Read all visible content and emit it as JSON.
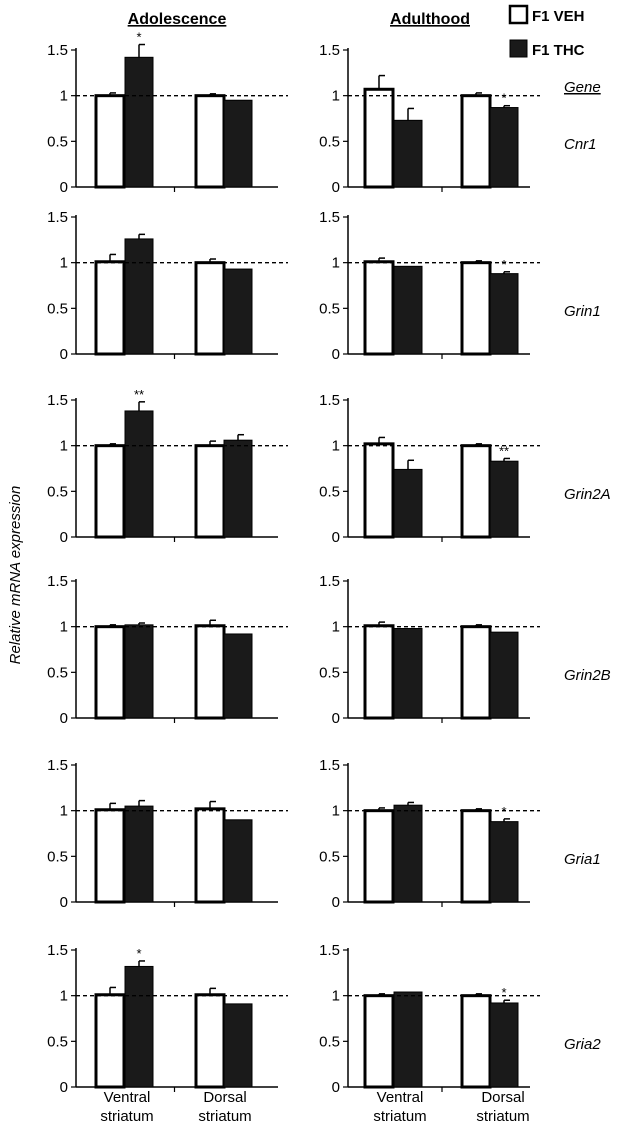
{
  "headers": {
    "left": "Adolescence",
    "right": "Adulthood"
  },
  "gene_header": "Gene",
  "y_axis_label": "Relative mRNA expression",
  "legend": [
    {
      "label": "F1 VEH",
      "color": "#ffffff"
    },
    {
      "label": "F1 THC",
      "color": "#1a1a1a"
    }
  ],
  "categories": [
    "Ventral\nstriatum",
    "Dorsal\nstriatum"
  ],
  "chart_data": [
    {
      "type": "bar",
      "period": "Adolescence",
      "gene": "Cnr1",
      "categories": [
        "Ventral striatum",
        "Dorsal striatum"
      ],
      "ylim": [
        0,
        1.5
      ],
      "yticks": [
        "0",
        "0.5",
        "1",
        "1.5"
      ],
      "reference_line": 1,
      "series": [
        {
          "name": "F1 VEH",
          "values": [
            1.0,
            1.0
          ],
          "errors": [
            0.03,
            0.02
          ]
        },
        {
          "name": "F1 THC",
          "values": [
            1.42,
            0.95
          ],
          "errors": [
            0.14,
            0.0
          ]
        }
      ],
      "significance": [
        {
          "category": "Ventral striatum",
          "label": "*"
        }
      ]
    },
    {
      "type": "bar",
      "period": "Adulthood",
      "gene": "Cnr1",
      "categories": [
        "Ventral striatum",
        "Dorsal striatum"
      ],
      "ylim": [
        0,
        1.5
      ],
      "yticks": [
        "0",
        "0.5",
        "1",
        "1.5"
      ],
      "reference_line": 1,
      "series": [
        {
          "name": "F1 VEH",
          "values": [
            1.07,
            1.0
          ],
          "errors": [
            0.15,
            0.03
          ]
        },
        {
          "name": "F1 THC",
          "values": [
            0.73,
            0.87
          ],
          "errors": [
            0.13,
            0.02
          ]
        }
      ],
      "significance": [
        {
          "category": "Dorsal striatum",
          "label": "*"
        }
      ]
    },
    {
      "type": "bar",
      "period": "Adolescence",
      "gene": "Grin1",
      "categories": [
        "Ventral striatum",
        "Dorsal striatum"
      ],
      "ylim": [
        0,
        1.5
      ],
      "yticks": [
        "0",
        "0.5",
        "1",
        "1.5"
      ],
      "reference_line": 1,
      "series": [
        {
          "name": "F1 VEH",
          "values": [
            1.01,
            1.0
          ],
          "errors": [
            0.08,
            0.04
          ]
        },
        {
          "name": "F1 THC",
          "values": [
            1.26,
            0.93
          ],
          "errors": [
            0.05,
            0.0
          ]
        }
      ],
      "significance": []
    },
    {
      "type": "bar",
      "period": "Adulthood",
      "gene": "Grin1",
      "categories": [
        "Ventral striatum",
        "Dorsal striatum"
      ],
      "ylim": [
        0,
        1.5
      ],
      "yticks": [
        "0",
        "0.5",
        "1",
        "1.5"
      ],
      "reference_line": 1,
      "series": [
        {
          "name": "F1 VEH",
          "values": [
            1.01,
            1.0
          ],
          "errors": [
            0.04,
            0.02
          ]
        },
        {
          "name": "F1 THC",
          "values": [
            0.96,
            0.88
          ],
          "errors": [
            0.0,
            0.02
          ]
        }
      ],
      "significance": [
        {
          "category": "Dorsal striatum",
          "label": "*"
        }
      ]
    },
    {
      "type": "bar",
      "period": "Adolescence",
      "gene": "Grin2A",
      "categories": [
        "Ventral striatum",
        "Dorsal striatum"
      ],
      "ylim": [
        0,
        1.5
      ],
      "yticks": [
        "0",
        "0.5",
        "1",
        "1.5"
      ],
      "reference_line": 1,
      "series": [
        {
          "name": "F1 VEH",
          "values": [
            1.0,
            1.0
          ],
          "errors": [
            0.02,
            0.05
          ]
        },
        {
          "name": "F1 THC",
          "values": [
            1.38,
            1.06
          ],
          "errors": [
            0.1,
            0.06
          ]
        }
      ],
      "significance": [
        {
          "category": "Ventral striatum",
          "label": "**"
        }
      ]
    },
    {
      "type": "bar",
      "period": "Adulthood",
      "gene": "Grin2A",
      "categories": [
        "Ventral striatum",
        "Dorsal striatum"
      ],
      "ylim": [
        0,
        1.5
      ],
      "yticks": [
        "0",
        "0.5",
        "1",
        "1.5"
      ],
      "reference_line": 1,
      "series": [
        {
          "name": "F1 VEH",
          "values": [
            1.02,
            1.0
          ],
          "errors": [
            0.07,
            0.02
          ]
        },
        {
          "name": "F1 THC",
          "values": [
            0.74,
            0.83
          ],
          "errors": [
            0.1,
            0.03
          ]
        }
      ],
      "significance": [
        {
          "category": "Dorsal striatum",
          "label": "**"
        }
      ]
    },
    {
      "type": "bar",
      "period": "Adolescence",
      "gene": "Grin2B",
      "categories": [
        "Ventral striatum",
        "Dorsal striatum"
      ],
      "ylim": [
        0,
        1.5
      ],
      "yticks": [
        "0",
        "0.5",
        "1",
        "1.5"
      ],
      "reference_line": 1,
      "series": [
        {
          "name": "F1 VEH",
          "values": [
            1.0,
            1.01
          ],
          "errors": [
            0.02,
            0.06
          ]
        },
        {
          "name": "F1 THC",
          "values": [
            1.02,
            0.92
          ],
          "errors": [
            0.02,
            0.0
          ]
        }
      ],
      "significance": []
    },
    {
      "type": "bar",
      "period": "Adulthood",
      "gene": "Grin2B",
      "categories": [
        "Ventral striatum",
        "Dorsal striatum"
      ],
      "ylim": [
        0,
        1.5
      ],
      "yticks": [
        "0",
        "0.5",
        "1",
        "1.5"
      ],
      "reference_line": 1,
      "series": [
        {
          "name": "F1 VEH",
          "values": [
            1.01,
            1.0
          ],
          "errors": [
            0.04,
            0.02
          ]
        },
        {
          "name": "F1 THC",
          "values": [
            0.98,
            0.94
          ],
          "errors": [
            0.0,
            0.0
          ]
        }
      ],
      "significance": []
    },
    {
      "type": "bar",
      "period": "Adolescence",
      "gene": "Gria1",
      "categories": [
        "Ventral striatum",
        "Dorsal striatum"
      ],
      "ylim": [
        0,
        1.5
      ],
      "yticks": [
        "0",
        "0.5",
        "1",
        "1.5"
      ],
      "reference_line": 1,
      "series": [
        {
          "name": "F1 VEH",
          "values": [
            1.01,
            1.02
          ],
          "errors": [
            0.07,
            0.08
          ]
        },
        {
          "name": "F1 THC",
          "values": [
            1.05,
            0.9
          ],
          "errors": [
            0.06,
            0.0
          ]
        }
      ],
      "significance": []
    },
    {
      "type": "bar",
      "period": "Adulthood",
      "gene": "Gria1",
      "categories": [
        "Ventral striatum",
        "Dorsal striatum"
      ],
      "ylim": [
        0,
        1.5
      ],
      "yticks": [
        "0",
        "0.5",
        "1",
        "1.5"
      ],
      "reference_line": 1,
      "series": [
        {
          "name": "F1 VEH",
          "values": [
            1.0,
            1.0
          ],
          "errors": [
            0.03,
            0.02
          ]
        },
        {
          "name": "F1 THC",
          "values": [
            1.06,
            0.88
          ],
          "errors": [
            0.03,
            0.03
          ]
        }
      ],
      "significance": [
        {
          "category": "Dorsal striatum",
          "label": "*"
        }
      ]
    },
    {
      "type": "bar",
      "period": "Adolescence",
      "gene": "Gria2",
      "categories": [
        "Ventral striatum",
        "Dorsal striatum"
      ],
      "ylim": [
        0,
        1.5
      ],
      "yticks": [
        "0",
        "0.5",
        "1",
        "1.5"
      ],
      "reference_line": 1,
      "series": [
        {
          "name": "F1 VEH",
          "values": [
            1.01,
            1.01
          ],
          "errors": [
            0.08,
            0.07
          ]
        },
        {
          "name": "F1 THC",
          "values": [
            1.32,
            0.91
          ],
          "errors": [
            0.06,
            0.0
          ]
        }
      ],
      "significance": [
        {
          "category": "Ventral striatum",
          "label": "*"
        }
      ]
    },
    {
      "type": "bar",
      "period": "Adulthood",
      "gene": "Gria2",
      "categories": [
        "Ventral striatum",
        "Dorsal striatum"
      ],
      "ylim": [
        0,
        1.5
      ],
      "yticks": [
        "0",
        "0.5",
        "1",
        "1.5"
      ],
      "reference_line": 1,
      "series": [
        {
          "name": "F1 VEH",
          "values": [
            1.0,
            1.0
          ],
          "errors": [
            0.02,
            0.02
          ]
        },
        {
          "name": "F1 THC",
          "values": [
            1.04,
            0.92
          ],
          "errors": [
            0.0,
            0.03
          ]
        }
      ],
      "significance": [
        {
          "category": "Dorsal striatum",
          "label": "*"
        }
      ]
    }
  ]
}
